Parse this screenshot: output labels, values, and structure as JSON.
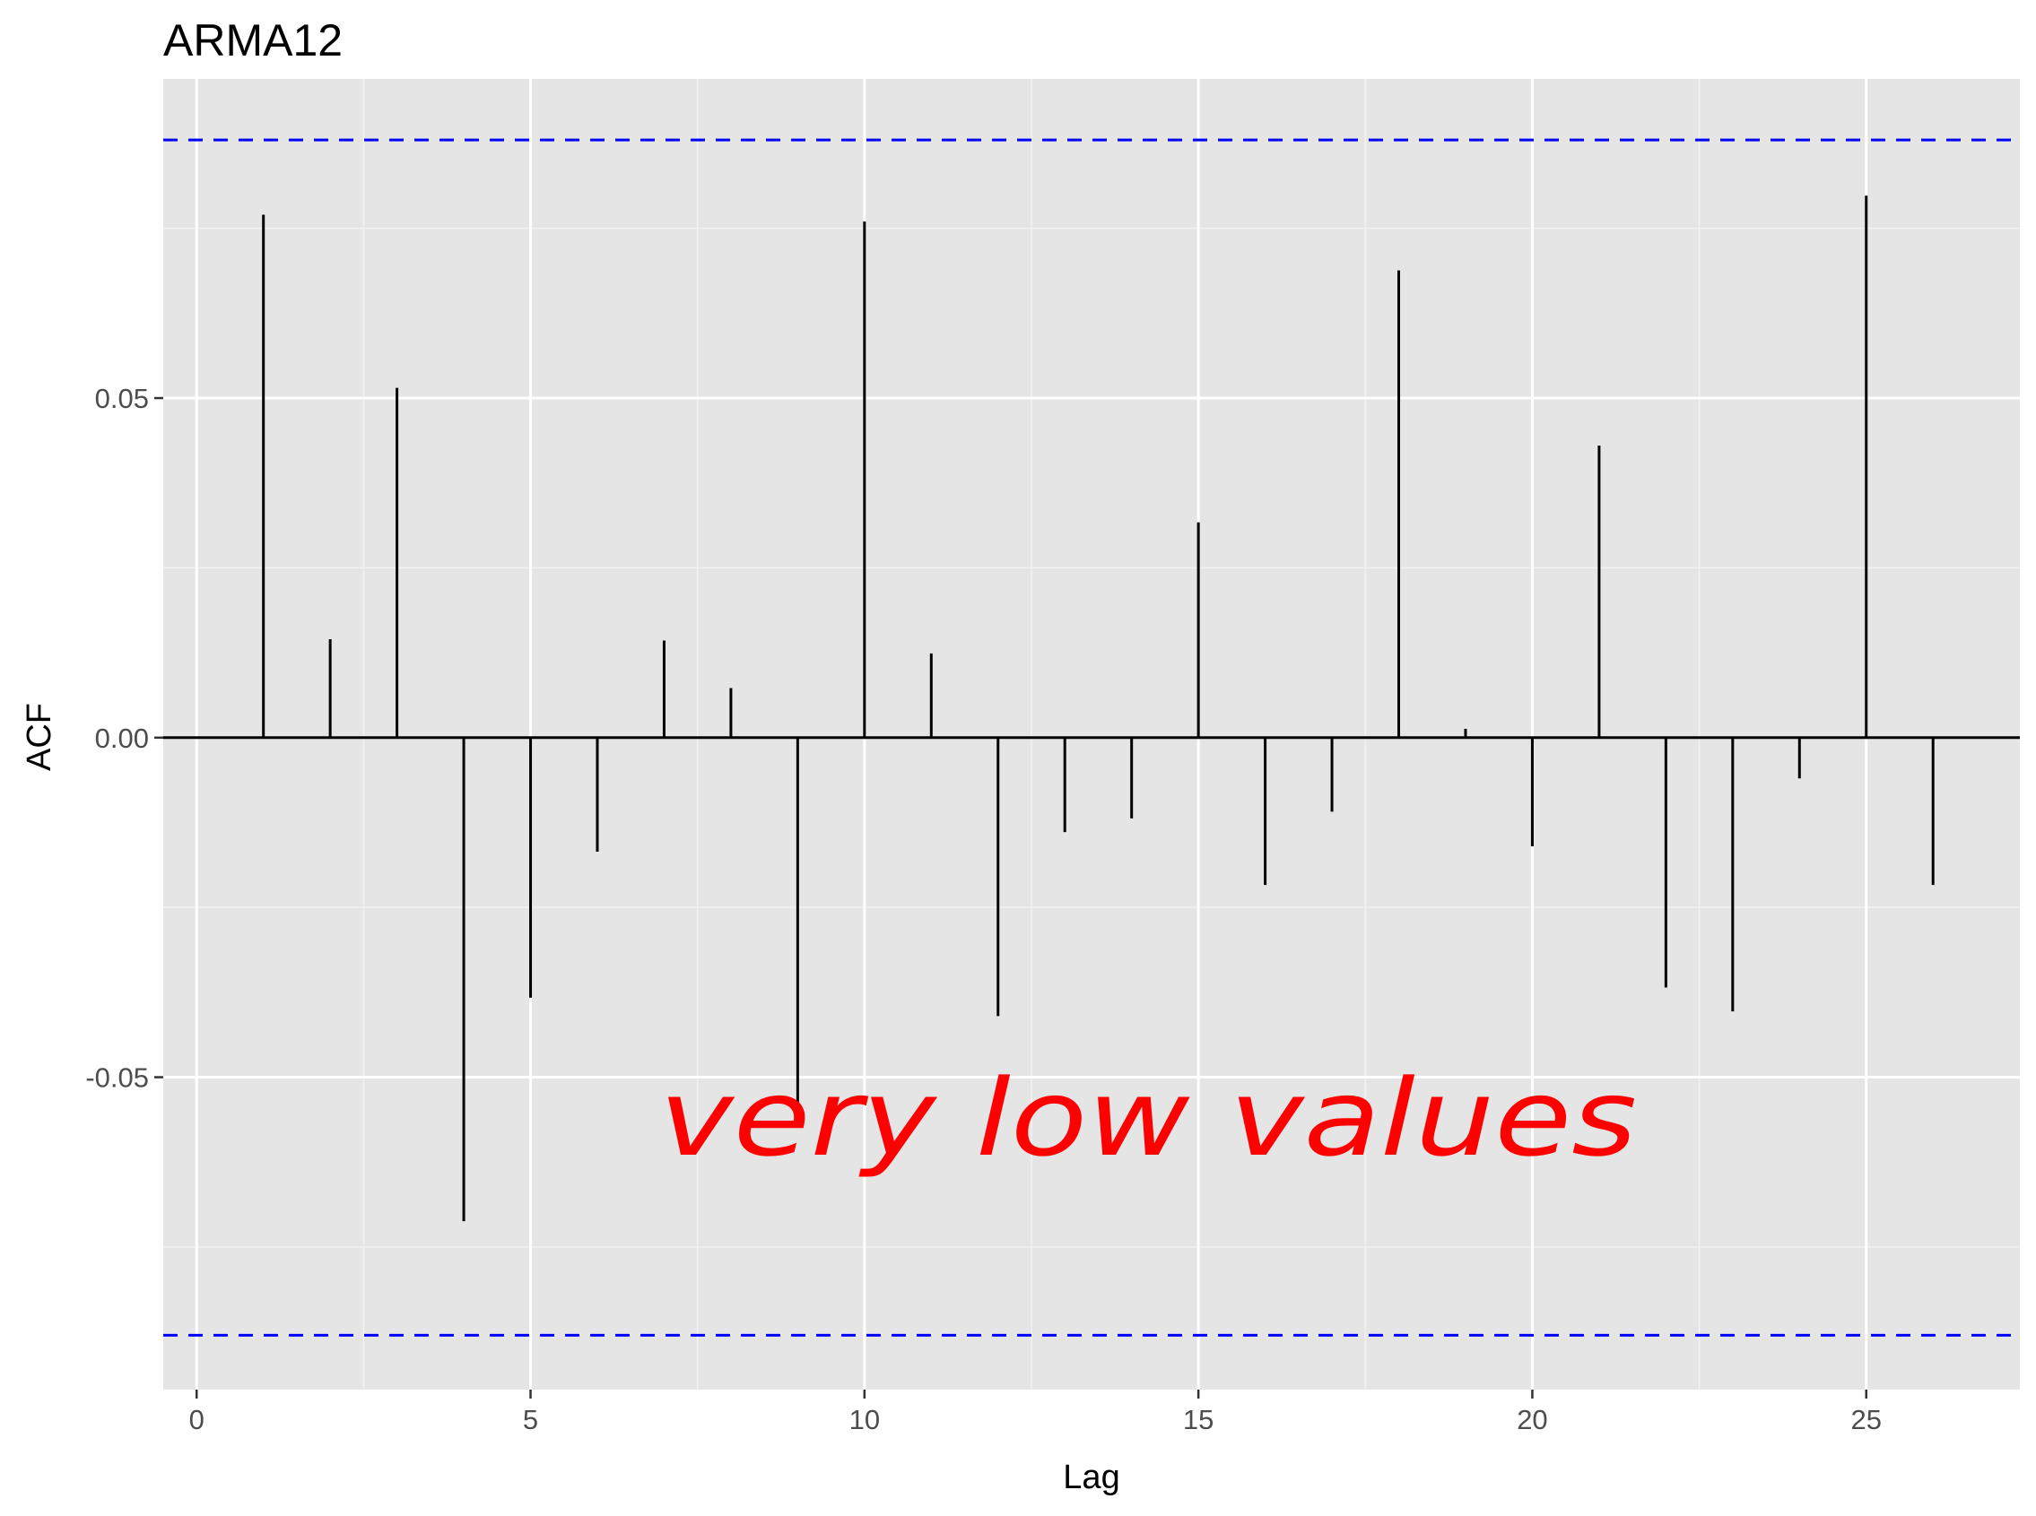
{
  "chart_data": {
    "type": "bar",
    "title": "ARMA12",
    "xlabel": "Lag",
    "ylabel": "ACF",
    "xlim": [
      -0.5,
      27.3
    ],
    "ylim": [
      -0.096,
      0.097
    ],
    "x_ticks": [
      0,
      5,
      10,
      15,
      20,
      25
    ],
    "x_tick_labels": [
      "0",
      "5",
      "10",
      "15",
      "20",
      "25"
    ],
    "y_ticks": [
      -0.05,
      0.0,
      0.05
    ],
    "y_tick_labels": [
      "-0.05",
      "0.00",
      "0.05"
    ],
    "grid": true,
    "confidence_bounds": [
      0.088,
      -0.088
    ],
    "confidence_color": "#0000ff",
    "panel_background": "#e5e5e5",
    "bar_color": "#000000",
    "lags": [
      1,
      2,
      3,
      4,
      5,
      6,
      7,
      8,
      9,
      10,
      11,
      12,
      13,
      14,
      15,
      16,
      17,
      18,
      19,
      20,
      21,
      22,
      23,
      24,
      25,
      26
    ],
    "values": [
      0.077,
      0.0145,
      0.0515,
      -0.0712,
      -0.0383,
      -0.0168,
      0.0143,
      0.0073,
      -0.0552,
      0.076,
      0.0124,
      -0.041,
      -0.0139,
      -0.0119,
      0.0317,
      -0.0217,
      -0.0109,
      0.0688,
      0.0013,
      -0.016,
      0.043,
      -0.0368,
      -0.0403,
      -0.006,
      0.0798,
      -0.0217
    ]
  },
  "annotation": {
    "text": "very low values",
    "color": "#ff0000"
  }
}
